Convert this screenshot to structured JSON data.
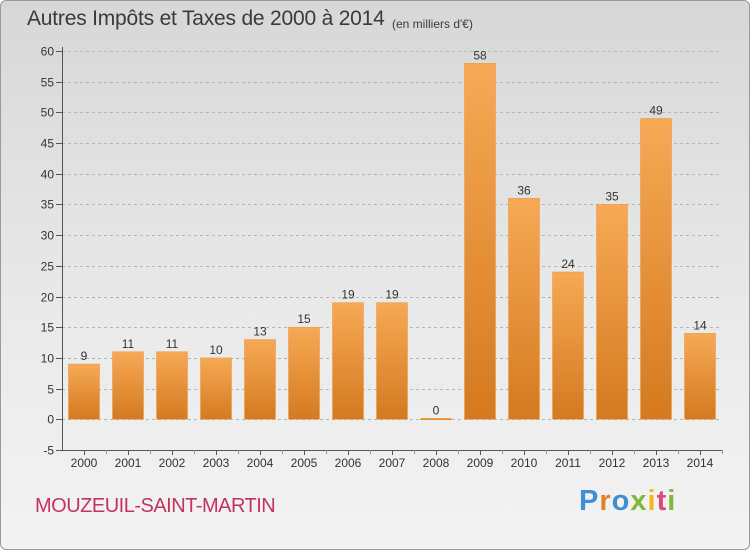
{
  "header": {
    "title": "Autres Impôts et Taxes de 2000 à 2014",
    "unit": "(en milliers d'€)"
  },
  "footer": {
    "commune": "MOUZEUIL-SAINT-MARTIN",
    "logo": "Proxiti"
  },
  "colors": {
    "bar_light": "#f7a955",
    "bar_dark": "#d47a20",
    "title": "#3a3a3a",
    "commune": "#c4335e"
  },
  "chart_data": {
    "type": "bar",
    "title": "Autres Impôts et Taxes de 2000 à 2014",
    "subtitle": "(en milliers d'€)",
    "xlabel": "",
    "ylabel": "",
    "categories": [
      "2000",
      "2001",
      "2002",
      "2003",
      "2004",
      "2005",
      "2006",
      "2007",
      "2008",
      "2009",
      "2010",
      "2011",
      "2012",
      "2013",
      "2014"
    ],
    "values": [
      9,
      11,
      11,
      10,
      13,
      15,
      19,
      19,
      0,
      58,
      36,
      24,
      35,
      49,
      14
    ],
    "data_labels": [
      "9",
      "11",
      "11",
      "10",
      "13",
      "15",
      "19",
      "19",
      "0",
      "58",
      "36",
      "24",
      "35",
      "49",
      "14"
    ],
    "ylim": [
      -5,
      60
    ],
    "yticks": [
      -5,
      0,
      5,
      10,
      15,
      20,
      25,
      30,
      35,
      40,
      45,
      50,
      55,
      60
    ],
    "grid": "horizontal dashed",
    "legend": "none"
  }
}
